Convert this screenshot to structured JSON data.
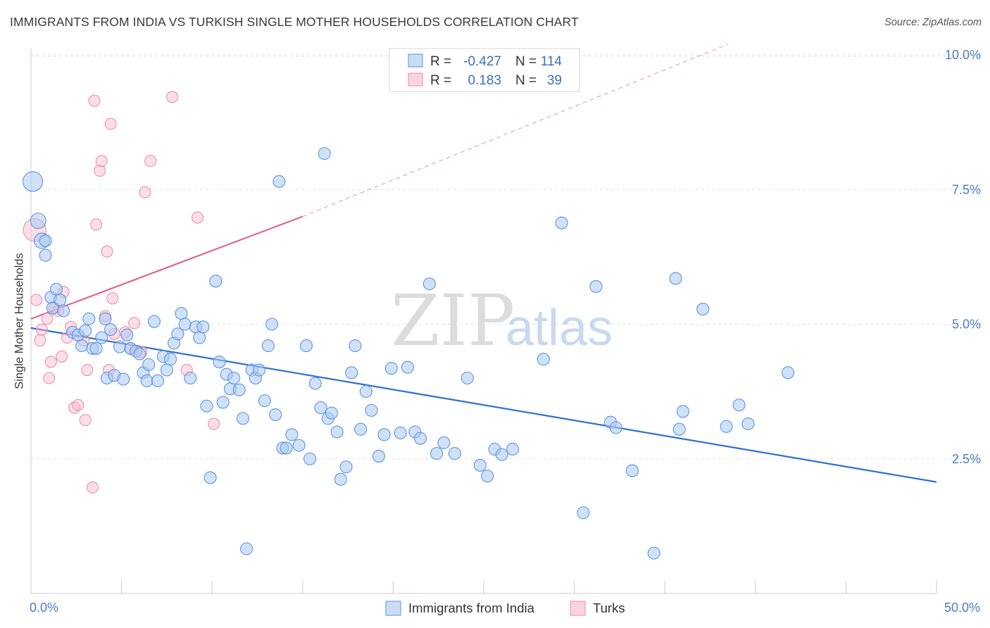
{
  "title": "IMMIGRANTS FROM INDIA VS TURKISH SINGLE MOTHER HOUSEHOLDS CORRELATION CHART",
  "source": "Source: ZipAtlas.com",
  "watermark": {
    "zip": "ZIP",
    "atlas": "atlas"
  },
  "colors": {
    "blue": "#6fa3e6",
    "blue_line": "#2f6fd0",
    "pink": "#f29ab8",
    "pink_line": "#e0668f",
    "accent_text": "#4a7cc6"
  },
  "legend_top": {
    "rows": [
      {
        "r_label": "R =",
        "r_value": "-0.427",
        "n_label": "N =",
        "n_value": "114"
      },
      {
        "r_label": "R =",
        "r_value": "0.183",
        "n_label": "N =",
        "n_value": "39"
      }
    ]
  },
  "legend_bottom": [
    "Immigrants from India",
    "Turks"
  ],
  "chart_data": {
    "type": "scatter",
    "title": "IMMIGRANTS FROM INDIA VS TURKISH SINGLE MOTHER HOUSEHOLDS CORRELATION CHART",
    "xlabel": "",
    "ylabel": "Single Mother Households",
    "xlim": [
      0,
      50
    ],
    "ylim": [
      0,
      10.5
    ],
    "x_tick_labels": [
      "0.0%",
      "50.0%"
    ],
    "y_ticks": [
      2.5,
      5.0,
      7.5,
      10.0
    ],
    "y_tick_labels": [
      "2.5%",
      "5.0%",
      "7.5%",
      "10.0%"
    ],
    "grid": true,
    "legend_position": "top-center",
    "series": [
      {
        "name": "Immigrants from India",
        "color": "#6fa3e6",
        "R": -0.427,
        "N": 114,
        "trend": {
          "x": [
            0,
            50
          ],
          "y": [
            4.93,
            2.07
          ]
        },
        "points": [
          [
            0.1,
            7.65
          ],
          [
            0.4,
            6.92
          ],
          [
            0.6,
            6.55
          ],
          [
            0.8,
            6.55
          ],
          [
            0.8,
            6.28
          ],
          [
            1.1,
            5.5
          ],
          [
            1.2,
            5.3
          ],
          [
            1.4,
            5.65
          ],
          [
            1.6,
            5.45
          ],
          [
            1.8,
            5.25
          ],
          [
            2.3,
            4.85
          ],
          [
            2.6,
            4.8
          ],
          [
            2.8,
            4.6
          ],
          [
            3.0,
            4.88
          ],
          [
            3.2,
            5.1
          ],
          [
            3.4,
            4.55
          ],
          [
            3.6,
            4.55
          ],
          [
            3.9,
            4.75
          ],
          [
            4.1,
            5.1
          ],
          [
            4.2,
            4.0
          ],
          [
            4.4,
            4.9
          ],
          [
            4.6,
            4.05
          ],
          [
            4.9,
            4.58
          ],
          [
            5.1,
            3.98
          ],
          [
            5.3,
            4.8
          ],
          [
            5.5,
            4.55
          ],
          [
            5.8,
            4.5
          ],
          [
            6.0,
            4.45
          ],
          [
            6.2,
            4.1
          ],
          [
            6.4,
            3.95
          ],
          [
            6.5,
            4.25
          ],
          [
            6.8,
            5.05
          ],
          [
            7.0,
            3.95
          ],
          [
            7.3,
            4.4
          ],
          [
            7.5,
            4.15
          ],
          [
            7.7,
            4.35
          ],
          [
            7.9,
            4.65
          ],
          [
            8.1,
            4.82
          ],
          [
            8.3,
            5.2
          ],
          [
            8.5,
            5.0
          ],
          [
            8.8,
            4.0
          ],
          [
            9.1,
            4.95
          ],
          [
            9.3,
            4.75
          ],
          [
            9.5,
            4.95
          ],
          [
            9.7,
            3.48
          ],
          [
            9.9,
            2.15
          ],
          [
            10.2,
            5.8
          ],
          [
            10.4,
            4.3
          ],
          [
            10.6,
            3.55
          ],
          [
            10.8,
            4.07
          ],
          [
            11.0,
            3.8
          ],
          [
            11.2,
            4.0
          ],
          [
            11.5,
            3.78
          ],
          [
            11.7,
            3.25
          ],
          [
            11.9,
            0.83
          ],
          [
            12.2,
            4.15
          ],
          [
            12.4,
            4.0
          ],
          [
            12.6,
            4.15
          ],
          [
            12.9,
            3.58
          ],
          [
            13.1,
            4.6
          ],
          [
            13.3,
            5.0
          ],
          [
            13.5,
            3.32
          ],
          [
            13.7,
            7.65
          ],
          [
            13.9,
            2.7
          ],
          [
            14.1,
            2.7
          ],
          [
            14.4,
            2.95
          ],
          [
            14.8,
            2.75
          ],
          [
            15.2,
            4.6
          ],
          [
            15.4,
            2.5
          ],
          [
            15.7,
            3.9
          ],
          [
            16.0,
            3.45
          ],
          [
            16.2,
            8.17
          ],
          [
            16.4,
            3.25
          ],
          [
            16.6,
            3.35
          ],
          [
            16.9,
            3.0
          ],
          [
            17.1,
            2.12
          ],
          [
            17.4,
            2.35
          ],
          [
            17.7,
            4.1
          ],
          [
            17.9,
            4.6
          ],
          [
            18.2,
            3.05
          ],
          [
            18.5,
            3.75
          ],
          [
            18.8,
            3.4
          ],
          [
            19.2,
            2.55
          ],
          [
            19.5,
            2.95
          ],
          [
            19.9,
            4.18
          ],
          [
            20.4,
            2.98
          ],
          [
            20.8,
            4.2
          ],
          [
            21.2,
            3.0
          ],
          [
            21.5,
            2.88
          ],
          [
            22.0,
            5.75
          ],
          [
            22.4,
            2.6
          ],
          [
            22.8,
            2.8
          ],
          [
            23.4,
            2.6
          ],
          [
            24.1,
            4.0
          ],
          [
            24.8,
            2.38
          ],
          [
            25.2,
            2.18
          ],
          [
            25.6,
            2.68
          ],
          [
            26.0,
            2.58
          ],
          [
            26.6,
            2.68
          ],
          [
            28.3,
            4.35
          ],
          [
            29.3,
            6.88
          ],
          [
            30.5,
            1.5
          ],
          [
            31.2,
            5.7
          ],
          [
            32.0,
            3.18
          ],
          [
            32.3,
            3.08
          ],
          [
            33.2,
            2.28
          ],
          [
            34.4,
            0.75
          ],
          [
            35.6,
            5.85
          ],
          [
            35.8,
            3.05
          ],
          [
            36.0,
            3.38
          ],
          [
            37.1,
            5.28
          ],
          [
            38.4,
            3.1
          ],
          [
            39.1,
            3.5
          ],
          [
            39.6,
            3.15
          ],
          [
            41.8,
            4.1
          ]
        ]
      },
      {
        "name": "Turks",
        "color": "#f29ab8",
        "R": 0.183,
        "N": 39,
        "trend": {
          "x": [
            0,
            15
          ],
          "y": [
            5.1,
            7.0
          ]
        },
        "trend_extrapolated": {
          "x": [
            15,
            38.5
          ],
          "y": [
            7.0,
            10.2
          ]
        },
        "points": [
          [
            0.2,
            6.75
          ],
          [
            0.3,
            5.45
          ],
          [
            0.5,
            4.7
          ],
          [
            0.6,
            4.9
          ],
          [
            0.9,
            5.1
          ],
          [
            1.0,
            4.0
          ],
          [
            1.1,
            4.3
          ],
          [
            1.3,
            5.3
          ],
          [
            1.5,
            5.25
          ],
          [
            1.7,
            4.4
          ],
          [
            2.0,
            4.75
          ],
          [
            2.2,
            4.95
          ],
          [
            2.4,
            3.45
          ],
          [
            2.6,
            3.5
          ],
          [
            2.9,
            4.7
          ],
          [
            3.0,
            3.22
          ],
          [
            3.1,
            4.15
          ],
          [
            3.4,
            1.97
          ],
          [
            3.5,
            9.15
          ],
          [
            3.6,
            6.85
          ],
          [
            3.8,
            7.85
          ],
          [
            3.9,
            8.03
          ],
          [
            4.1,
            5.15
          ],
          [
            4.2,
            6.35
          ],
          [
            4.3,
            4.15
          ],
          [
            4.4,
            8.72
          ],
          [
            4.5,
            5.48
          ],
          [
            4.6,
            4.82
          ],
          [
            5.2,
            4.85
          ],
          [
            5.5,
            4.55
          ],
          [
            5.7,
            5.02
          ],
          [
            6.1,
            4.48
          ],
          [
            6.3,
            7.45
          ],
          [
            6.6,
            8.03
          ],
          [
            7.8,
            9.22
          ],
          [
            8.6,
            4.15
          ],
          [
            9.2,
            6.98
          ],
          [
            10.1,
            3.15
          ],
          [
            1.8,
            5.6
          ]
        ]
      }
    ]
  }
}
